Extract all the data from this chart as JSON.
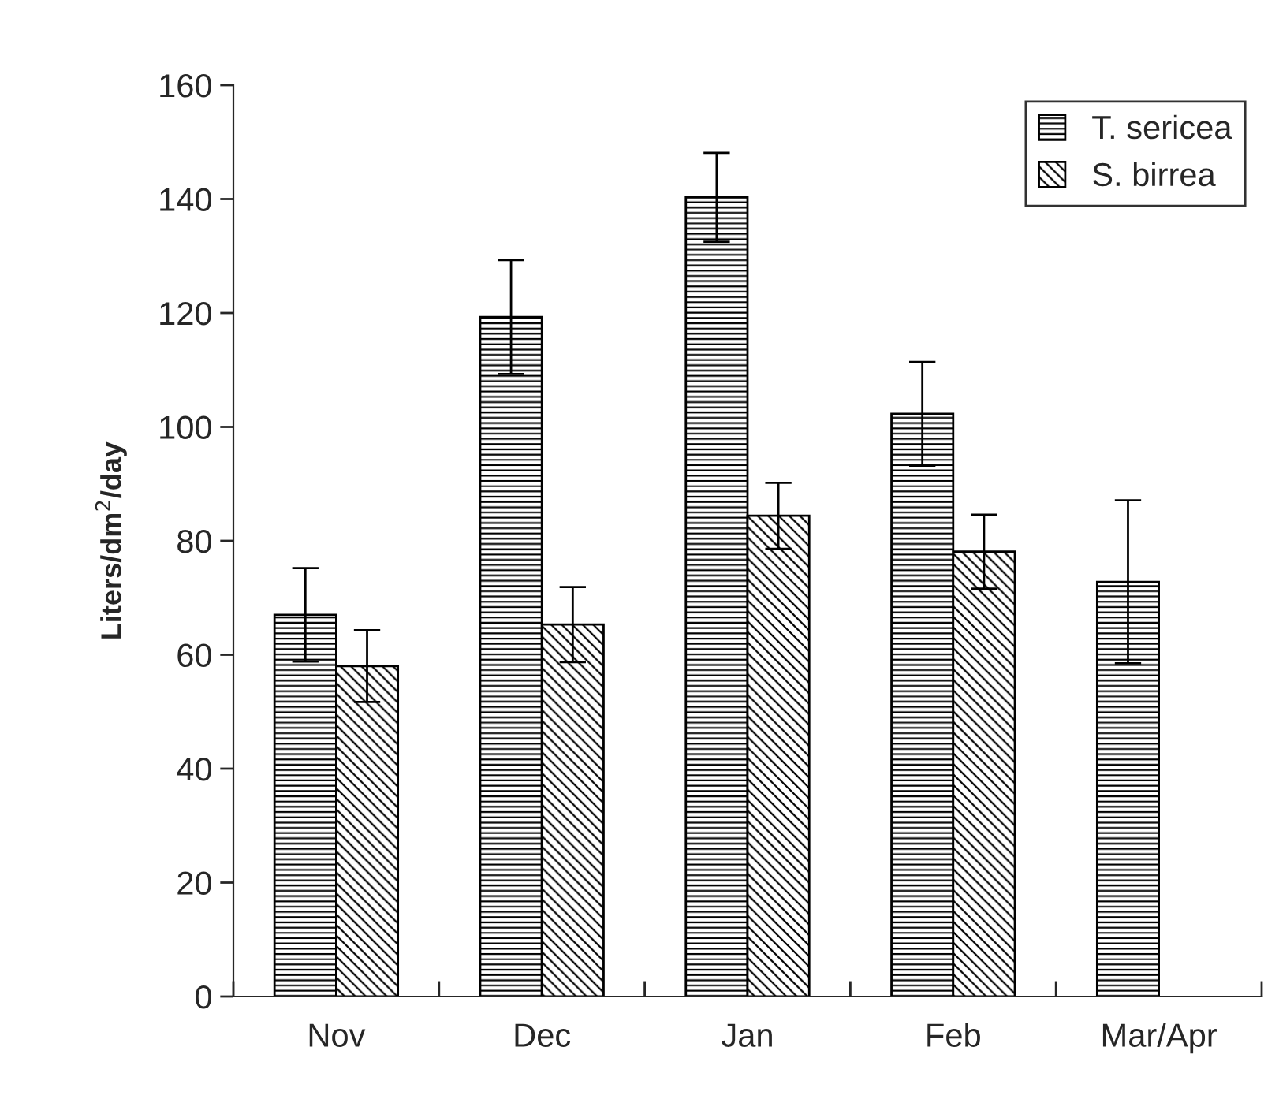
{
  "chart_data": {
    "type": "bar",
    "ylabel": "Liters/dm$^{2}$/day",
    "categories": [
      "Nov",
      "Dec",
      "Jan",
      "Feb",
      "Mar/Apr"
    ],
    "series": [
      {
        "name": "T. sericea",
        "color": "#000000",
        "values": [
          67,
          119.3,
          140.3,
          102.3,
          72.8
        ],
        "errors": [
          8.2,
          10,
          7.8,
          9.1,
          14.3
        ]
      },
      {
        "name": "S. birrea",
        "color": "#000000",
        "values": [
          58,
          65.3,
          84.4,
          78.1,
          null
        ],
        "errors": [
          6.3,
          6.6,
          5.8,
          6.5,
          null
        ]
      }
    ],
    "ylim": [
      0,
      160
    ],
    "yticks": [
      0,
      20,
      40,
      60,
      80,
      100,
      120,
      140,
      160
    ],
    "grid": false,
    "legend": "top right"
  }
}
